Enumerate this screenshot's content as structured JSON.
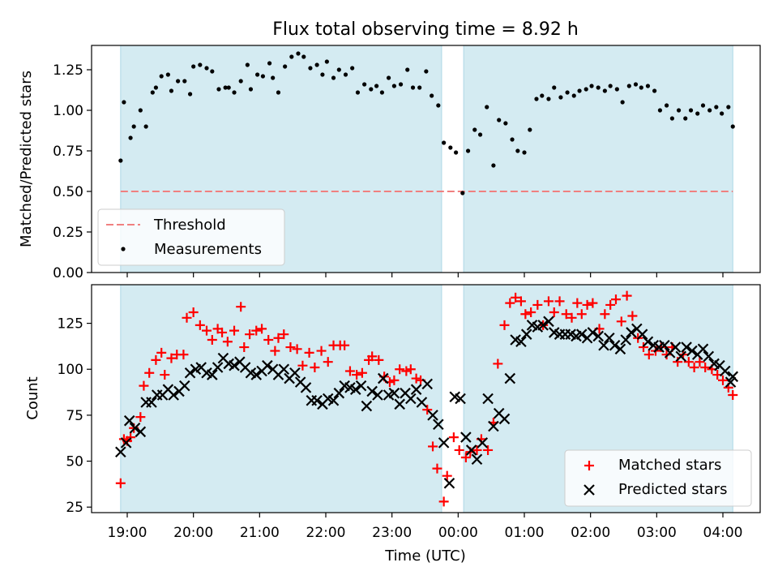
{
  "chart_data": [
    {
      "type": "scatter",
      "title": "Flux total observing time = 8.92 h",
      "ylabel": "Matched/Predicted stars",
      "ylim": [
        0,
        1.4
      ],
      "yticks": [
        "0.00",
        "0.25",
        "0.50",
        "0.75",
        "1.00",
        "1.25"
      ],
      "threshold": 0.5,
      "legend": {
        "position": "lower-left",
        "threshold_label": "Threshold",
        "measurements_label": "Measurements"
      },
      "shaded_spans": [
        [
          "18:54",
          "23:45"
        ],
        [
          "00:05",
          "04:09"
        ]
      ],
      "series": [
        {
          "name": "Measurements",
          "x": [
            "18:54",
            "18:57",
            "19:03",
            "19:06",
            "19:12",
            "19:17",
            "19:23",
            "19:26",
            "19:31",
            "19:37",
            "19:40",
            "19:46",
            "19:52",
            "19:57",
            "20:00",
            "20:06",
            "20:12",
            "20:17",
            "20:23",
            "20:29",
            "20:32",
            "20:37",
            "20:43",
            "20:49",
            "20:52",
            "20:58",
            "21:03",
            "21:09",
            "21:12",
            "21:17",
            "21:23",
            "21:29",
            "21:35",
            "21:40",
            "21:46",
            "21:52",
            "21:57",
            "22:01",
            "22:07",
            "22:12",
            "22:18",
            "22:24",
            "22:29",
            "22:35",
            "22:41",
            "22:46",
            "22:51",
            "22:57",
            "23:02",
            "23:08",
            "23:14",
            "23:19",
            "23:25",
            "23:31",
            "23:36",
            "23:42",
            "23:47",
            "23:53",
            "23:58",
            "00:04",
            "00:09",
            "00:15",
            "00:20",
            "00:26",
            "00:32",
            "00:37",
            "00:43",
            "00:49",
            "00:54",
            "01:00",
            "01:05",
            "01:11",
            "01:16",
            "01:22",
            "01:27",
            "01:33",
            "01:39",
            "01:45",
            "01:50",
            "01:56",
            "02:01",
            "02:07",
            "02:13",
            "02:18",
            "02:24",
            "02:29",
            "02:35",
            "02:41",
            "02:46",
            "02:52",
            "02:58",
            "03:03",
            "03:09",
            "03:14",
            "03:20",
            "03:26",
            "03:31",
            "03:37",
            "03:42",
            "03:48",
            "03:54",
            "03:59",
            "04:05",
            "04:09"
          ],
          "y": [
            0.69,
            1.05,
            0.83,
            0.9,
            1.0,
            0.9,
            1.11,
            1.14,
            1.21,
            1.22,
            1.12,
            1.18,
            1.18,
            1.1,
            1.27,
            1.28,
            1.26,
            1.24,
            1.13,
            1.14,
            1.14,
            1.11,
            1.18,
            1.28,
            1.13,
            1.22,
            1.21,
            1.29,
            1.2,
            1.11,
            1.27,
            1.33,
            1.35,
            1.33,
            1.26,
            1.28,
            1.22,
            1.3,
            1.2,
            1.25,
            1.22,
            1.26,
            1.11,
            1.16,
            1.13,
            1.15,
            1.11,
            1.2,
            1.15,
            1.16,
            1.25,
            1.14,
            1.14,
            1.24,
            1.09,
            1.03,
            0.8,
            0.77,
            0.74,
            0.49,
            0.75,
            0.88,
            0.85,
            1.02,
            0.66,
            0.94,
            0.92,
            0.82,
            0.75,
            0.74,
            0.88,
            1.07,
            1.09,
            1.07,
            1.14,
            1.08,
            1.11,
            1.09,
            1.12,
            1.13,
            1.15,
            1.14,
            1.12,
            1.15,
            1.13,
            1.05,
            1.15,
            1.16,
            1.14,
            1.15,
            1.12,
            1.0,
            1.03,
            0.95,
            1.0,
            0.95,
            1.0,
            0.98,
            1.03,
            1.0,
            1.02,
            0.98,
            1.02,
            0.9
          ]
        }
      ]
    },
    {
      "type": "scatter",
      "xlabel": "Time (UTC)",
      "ylabel": "Count",
      "ylim": [
        22,
        146
      ],
      "yticks": [
        "25",
        "50",
        "75",
        "100",
        "125"
      ],
      "xticks": [
        "19:00",
        "20:00",
        "21:00",
        "22:00",
        "23:00",
        "00:00",
        "01:00",
        "02:00",
        "03:00",
        "04:00"
      ],
      "legend": {
        "position": "lower-right",
        "matched_label": "Matched stars",
        "predicted_label": "Predicted stars"
      },
      "shaded_spans": [
        [
          "18:54",
          "23:45"
        ],
        [
          "00:05",
          "04:09"
        ]
      ],
      "series": [
        {
          "name": "Matched stars",
          "x": [
            "18:54",
            "18:57",
            "19:00",
            "19:03",
            "19:06",
            "19:12",
            "19:15",
            "19:20",
            "19:26",
            "19:31",
            "19:34",
            "19:40",
            "19:45",
            "19:51",
            "19:54",
            "20:00",
            "20:06",
            "20:12",
            "20:17",
            "20:22",
            "20:26",
            "20:31",
            "20:37",
            "20:43",
            "20:46",
            "20:51",
            "20:57",
            "21:02",
            "21:08",
            "21:14",
            "21:17",
            "21:22",
            "21:28",
            "21:34",
            "21:39",
            "21:45",
            "21:50",
            "21:56",
            "22:02",
            "22:07",
            "22:13",
            "22:17",
            "22:22",
            "22:28",
            "22:33",
            "22:39",
            "22:42",
            "22:48",
            "22:53",
            "22:58",
            "23:02",
            "23:07",
            "23:13",
            "23:17",
            "23:22",
            "23:26",
            "23:32",
            "23:37",
            "23:41",
            "23:47",
            "23:50",
            "23:56",
            "00:01",
            "00:07",
            "00:11",
            "00:17",
            "00:21",
            "00:27",
            "00:32",
            "00:36",
            "00:42",
            "00:47",
            "00:52",
            "00:57",
            "01:01",
            "01:06",
            "01:12",
            "01:17",
            "01:22",
            "01:27",
            "01:32",
            "01:38",
            "01:43",
            "01:48",
            "01:52",
            "01:57",
            "02:02",
            "02:08",
            "02:13",
            "02:18",
            "02:23",
            "02:28",
            "02:33",
            "02:38",
            "02:43",
            "02:48",
            "02:53",
            "02:59",
            "03:04",
            "03:09",
            "03:14",
            "03:19",
            "03:24",
            "03:29",
            "03:34",
            "03:39",
            "03:44",
            "03:50",
            "03:55",
            "04:00",
            "04:05",
            "04:09"
          ],
          "y": [
            38,
            62,
            61,
            63,
            68,
            74,
            91,
            98,
            105,
            109,
            97,
            106,
            108,
            108,
            128,
            131,
            124,
            121,
            116,
            122,
            120,
            115,
            121,
            134,
            112,
            119,
            121,
            122,
            116,
            110,
            117,
            119,
            112,
            111,
            102,
            109,
            101,
            110,
            104,
            113,
            113,
            113,
            99,
            97,
            98,
            105,
            107,
            105,
            96,
            93,
            94,
            100,
            99,
            100,
            95,
            94,
            78,
            58,
            46,
            28,
            42,
            63,
            56,
            52,
            55,
            56,
            62,
            56,
            71,
            103,
            124,
            136,
            139,
            137,
            130,
            131,
            135,
            124,
            137,
            131,
            137,
            130,
            128,
            136,
            130,
            135,
            136,
            122,
            130,
            135,
            138,
            126,
            140,
            129,
            117,
            112,
            108,
            110,
            112,
            108,
            112,
            104,
            108,
            104,
            101,
            104,
            101,
            100,
            97,
            94,
            90,
            86
          ]
        },
        {
          "name": "Predicted stars",
          "x": [
            "18:54",
            "18:59",
            "19:02",
            "19:07",
            "19:12",
            "19:17",
            "19:22",
            "19:27",
            "19:32",
            "19:37",
            "19:42",
            "19:47",
            "19:52",
            "19:57",
            "20:02",
            "20:07",
            "20:12",
            "20:17",
            "20:22",
            "20:27",
            "20:32",
            "20:37",
            "20:42",
            "20:47",
            "20:52",
            "20:57",
            "21:02",
            "21:07",
            "21:12",
            "21:17",
            "21:22",
            "21:27",
            "21:32",
            "21:37",
            "21:42",
            "21:47",
            "21:52",
            "21:57",
            "22:02",
            "22:07",
            "22:12",
            "22:17",
            "22:22",
            "22:27",
            "22:32",
            "22:37",
            "22:42",
            "22:47",
            "22:52",
            "22:57",
            "23:02",
            "23:07",
            "23:12",
            "23:17",
            "23:22",
            "23:27",
            "23:32",
            "23:37",
            "23:42",
            "23:47",
            "23:52",
            "23:57",
            "00:02",
            "00:07",
            "00:12",
            "00:17",
            "00:22",
            "00:27",
            "00:32",
            "00:37",
            "00:42",
            "00:47",
            "00:52",
            "00:57",
            "01:02",
            "01:07",
            "01:12",
            "01:17",
            "01:22",
            "01:27",
            "01:32",
            "01:37",
            "01:42",
            "01:47",
            "01:52",
            "01:57",
            "02:02",
            "02:07",
            "02:12",
            "02:17",
            "02:22",
            "02:27",
            "02:32",
            "02:37",
            "02:42",
            "02:47",
            "02:52",
            "02:57",
            "03:02",
            "03:07",
            "03:12",
            "03:17",
            "03:22",
            "03:27",
            "03:32",
            "03:37",
            "03:42",
            "03:47",
            "03:52",
            "03:57",
            "04:02",
            "04:07",
            "04:09"
          ],
          "y": [
            55,
            60,
            72,
            68,
            66,
            82,
            82,
            86,
            86,
            89,
            86,
            88,
            91,
            98,
            100,
            101,
            98,
            97,
            101,
            106,
            103,
            102,
            104,
            101,
            98,
            97,
            99,
            102,
            100,
            97,
            100,
            95,
            98,
            93,
            90,
            83,
            83,
            81,
            84,
            83,
            87,
            91,
            90,
            89,
            91,
            80,
            88,
            86,
            95,
            86,
            87,
            81,
            87,
            84,
            89,
            82,
            92,
            75,
            70,
            60,
            38,
            85,
            84,
            63,
            56,
            51,
            60,
            84,
            69,
            76,
            73,
            95,
            116,
            115,
            119,
            124,
            123,
            124,
            126,
            120,
            119,
            119,
            119,
            118,
            119,
            117,
            120,
            118,
            113,
            117,
            113,
            111,
            116,
            120,
            122,
            119,
            115,
            113,
            112,
            113,
            109,
            112,
            107,
            112,
            110,
            108,
            111,
            107,
            103,
            102,
            99,
            93,
            96
          ]
        }
      ]
    }
  ]
}
